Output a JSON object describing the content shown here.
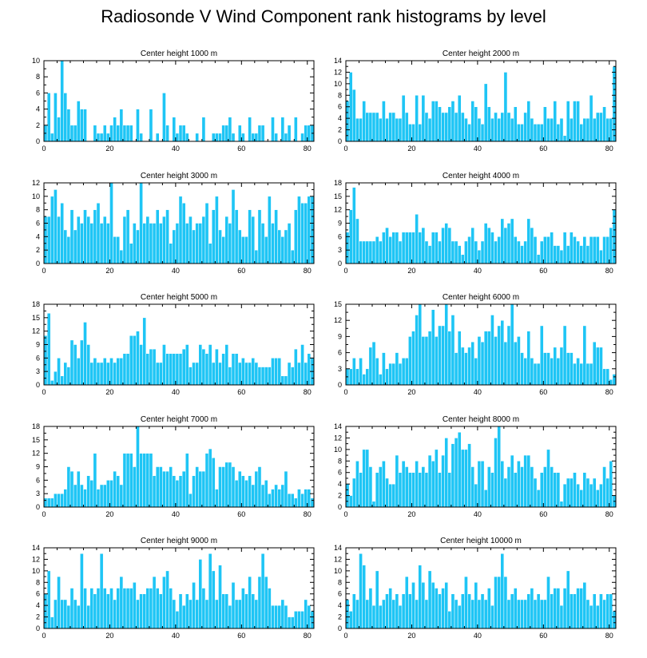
{
  "title": "Radiosonde V Wind Component rank histograms by level",
  "style": {
    "bar_color": "#1ec5f5",
    "bar_edge": "#ffffff",
    "axis_color": "#000000"
  },
  "chart_data": [
    {
      "type": "bar",
      "title": "Center height 1000 m",
      "xlim": [
        0,
        82
      ],
      "ylim": [
        0,
        10
      ],
      "xticks": [
        0,
        20,
        40,
        60,
        80
      ],
      "yticks": [
        0,
        2,
        4,
        6,
        8,
        10
      ],
      "values": [
        2,
        6,
        1,
        6,
        3,
        10,
        6,
        4,
        2,
        2,
        5,
        4,
        4,
        0,
        0,
        2,
        1,
        1,
        2,
        1,
        2,
        3,
        2,
        4,
        2,
        2,
        2,
        0,
        4,
        1,
        0,
        0,
        4,
        0,
        1,
        0,
        6,
        2,
        0,
        3,
        1,
        2,
        2,
        1,
        0,
        0,
        1,
        0,
        3,
        0,
        0,
        1,
        1,
        1,
        2,
        2,
        3,
        1,
        0,
        2,
        1,
        0,
        3,
        1,
        1,
        2,
        2,
        0,
        0,
        3,
        1,
        0,
        3,
        1,
        2,
        0,
        3,
        0,
        1,
        2,
        2,
        2
      ]
    },
    {
      "type": "bar",
      "title": "Center height 2000 m",
      "xlim": [
        0,
        82
      ],
      "ylim": [
        0,
        14
      ],
      "xticks": [
        0,
        20,
        40,
        60,
        80
      ],
      "yticks": [
        0,
        2,
        4,
        6,
        8,
        10,
        12,
        14
      ],
      "values": [
        7,
        12,
        9,
        4,
        4,
        7,
        5,
        5,
        5,
        5,
        4,
        7,
        4,
        5,
        5,
        4,
        4,
        8,
        5,
        3,
        3,
        8,
        3,
        8,
        5,
        4,
        7,
        7,
        6,
        5,
        5,
        6,
        7,
        5,
        8,
        5,
        4,
        3,
        7,
        6,
        4,
        3,
        10,
        6,
        4,
        5,
        4,
        5,
        12,
        5,
        4,
        6,
        3,
        3,
        5,
        7,
        4,
        3,
        3,
        3,
        6,
        4,
        4,
        7,
        3,
        4,
        1,
        7,
        4,
        7,
        7,
        3,
        4,
        4,
        8,
        4,
        5,
        5,
        6,
        4,
        4,
        13
      ]
    },
    {
      "type": "bar",
      "title": "Center height 3000 m",
      "xlim": [
        0,
        82
      ],
      "ylim": [
        0,
        12
      ],
      "xticks": [
        0,
        20,
        40,
        60,
        80
      ],
      "yticks": [
        0,
        2,
        4,
        6,
        8,
        10,
        12
      ],
      "values": [
        7,
        7,
        10,
        11,
        7,
        9,
        5,
        4,
        8,
        5,
        7,
        6,
        8,
        7,
        6,
        8,
        9,
        6,
        7,
        6,
        12,
        4,
        4,
        2,
        7,
        8,
        3,
        6,
        5,
        12,
        6,
        7,
        6,
        6,
        8,
        6,
        7,
        8,
        3,
        5,
        6,
        10,
        9,
        6,
        7,
        5,
        6,
        6,
        7,
        9,
        3,
        8,
        10,
        5,
        4,
        7,
        6,
        11,
        8,
        5,
        4,
        4,
        8,
        7,
        2,
        8,
        6,
        4,
        10,
        6,
        8,
        5,
        4,
        5,
        6,
        2,
        8,
        10,
        9,
        9,
        10,
        10
      ]
    },
    {
      "type": "bar",
      "title": "Center height 4000 m",
      "xlim": [
        0,
        82
      ],
      "ylim": [
        0,
        18
      ],
      "xticks": [
        0,
        20,
        40,
        60,
        80
      ],
      "yticks": [
        0,
        3,
        6,
        9,
        12,
        15,
        18
      ],
      "values": [
        7,
        12,
        17,
        10,
        5,
        5,
        5,
        5,
        5,
        6,
        5,
        7,
        8,
        6,
        7,
        7,
        5,
        7,
        7,
        7,
        7,
        11,
        7,
        8,
        5,
        4,
        7,
        7,
        5,
        8,
        9,
        8,
        5,
        5,
        4,
        2,
        5,
        6,
        8,
        5,
        3,
        5,
        9,
        8,
        7,
        5,
        6,
        10,
        8,
        9,
        10,
        6,
        5,
        4,
        5,
        10,
        8,
        6,
        2,
        5,
        6,
        6,
        7,
        4,
        4,
        3,
        7,
        4,
        7,
        6,
        5,
        4,
        6,
        4,
        6,
        6,
        6,
        3,
        6,
        6,
        8,
        12
      ]
    },
    {
      "type": "bar",
      "title": "Center height 5000 m",
      "xlim": [
        0,
        82
      ],
      "ylim": [
        0,
        18
      ],
      "xticks": [
        0,
        20,
        40,
        60,
        80
      ],
      "yticks": [
        0,
        3,
        6,
        9,
        12,
        15,
        18
      ],
      "values": [
        11,
        16,
        1,
        3,
        6,
        2,
        5,
        4,
        10,
        9,
        6,
        10,
        14,
        9,
        5,
        6,
        5,
        5,
        6,
        5,
        6,
        5,
        6,
        6,
        7,
        7,
        11,
        11,
        12,
        9,
        15,
        7,
        8,
        8,
        5,
        5,
        9,
        7,
        7,
        7,
        7,
        7,
        8,
        9,
        4,
        5,
        5,
        9,
        8,
        7,
        9,
        5,
        8,
        5,
        7,
        9,
        4,
        7,
        7,
        5,
        6,
        5,
        5,
        6,
        5,
        4,
        4,
        4,
        4,
        6,
        6,
        6,
        2,
        2,
        5,
        4,
        8,
        5,
        9,
        5,
        7,
        6
      ]
    },
    {
      "type": "bar",
      "title": "Center height 6000 m",
      "xlim": [
        0,
        82
      ],
      "ylim": [
        0,
        15
      ],
      "xticks": [
        0,
        20,
        40,
        60,
        80
      ],
      "yticks": [
        0,
        3,
        6,
        9,
        12,
        15
      ],
      "values": [
        3,
        3,
        5,
        3,
        5,
        2,
        3,
        7,
        8,
        5,
        2,
        6,
        3,
        4,
        4,
        6,
        4,
        5,
        5,
        9,
        10,
        13,
        15,
        9,
        9,
        10,
        14,
        9,
        11,
        11,
        15,
        10,
        13,
        6,
        10,
        7,
        6,
        7,
        8,
        5,
        9,
        8,
        10,
        10,
        13,
        9,
        11,
        12,
        8,
        11,
        15,
        8,
        9,
        6,
        5,
        10,
        5,
        4,
        4,
        11,
        6,
        6,
        5,
        7,
        5,
        7,
        11,
        6,
        6,
        4,
        5,
        4,
        11,
        4,
        4,
        8,
        7,
        7,
        3,
        3,
        1,
        2
      ]
    },
    {
      "type": "bar",
      "title": "Center height 7000 m",
      "xlim": [
        0,
        82
      ],
      "ylim": [
        0,
        18
      ],
      "xticks": [
        0,
        20,
        40,
        60,
        80
      ],
      "yticks": [
        0,
        3,
        6,
        9,
        12,
        15,
        18
      ],
      "values": [
        2,
        2,
        2,
        3,
        3,
        3,
        4,
        9,
        8,
        5,
        8,
        5,
        4,
        7,
        6,
        12,
        4,
        5,
        5,
        6,
        6,
        8,
        7,
        5,
        12,
        12,
        12,
        9,
        18,
        12,
        12,
        12,
        12,
        7,
        9,
        9,
        8,
        8,
        9,
        7,
        6,
        7,
        8,
        12,
        3,
        7,
        9,
        8,
        8,
        12,
        13,
        11,
        4,
        9,
        9,
        10,
        10,
        9,
        6,
        8,
        7,
        6,
        7,
        5,
        8,
        9,
        5,
        6,
        3,
        4,
        5,
        4,
        5,
        8,
        3,
        3,
        2,
        4,
        3,
        4,
        4,
        2
      ]
    },
    {
      "type": "bar",
      "title": "Center height 8000 m",
      "xlim": [
        0,
        82
      ],
      "ylim": [
        0,
        14
      ],
      "xticks": [
        0,
        20,
        40,
        60,
        80
      ],
      "yticks": [
        0,
        2,
        4,
        6,
        8,
        10,
        12,
        14
      ],
      "values": [
        4,
        2,
        5,
        8,
        6,
        10,
        10,
        7,
        1,
        6,
        7,
        8,
        5,
        4,
        4,
        9,
        6,
        8,
        7,
        6,
        6,
        8,
        6,
        7,
        6,
        9,
        8,
        10,
        6,
        9,
        12,
        6,
        11,
        12,
        13,
        10,
        10,
        11,
        7,
        4,
        8,
        8,
        3,
        7,
        6,
        12,
        14,
        8,
        5,
        7,
        9,
        6,
        8,
        7,
        9,
        9,
        7,
        5,
        3,
        6,
        7,
        10,
        7,
        6,
        6,
        1,
        4,
        5,
        5,
        6,
        4,
        3,
        6,
        5,
        4,
        5,
        3,
        4,
        7,
        5,
        8,
        2
      ]
    },
    {
      "type": "bar",
      "title": "Center height 9000 m",
      "xlim": [
        0,
        82
      ],
      "ylim": [
        0,
        14
      ],
      "xticks": [
        0,
        20,
        40,
        60,
        80
      ],
      "yticks": [
        0,
        2,
        4,
        6,
        8,
        10,
        12,
        14
      ],
      "values": [
        6,
        10,
        2,
        5,
        9,
        5,
        5,
        4,
        7,
        5,
        4,
        13,
        7,
        4,
        7,
        6,
        7,
        13,
        7,
        6,
        7,
        5,
        7,
        9,
        7,
        7,
        7,
        8,
        5,
        6,
        6,
        7,
        7,
        9,
        7,
        6,
        9,
        10,
        7,
        5,
        3,
        6,
        4,
        6,
        5,
        8,
        5,
        12,
        7,
        5,
        13,
        10,
        5,
        11,
        6,
        6,
        4,
        8,
        5,
        5,
        7,
        6,
        9,
        6,
        5,
        9,
        13,
        9,
        7,
        4,
        4,
        4,
        5,
        4,
        2,
        2,
        3,
        3,
        3,
        5,
        4,
        3
      ]
    },
    {
      "type": "bar",
      "title": "Center height 10000 m",
      "xlim": [
        0,
        82
      ],
      "ylim": [
        0,
        14
      ],
      "xticks": [
        0,
        20,
        40,
        60,
        80
      ],
      "yticks": [
        0,
        2,
        4,
        6,
        8,
        10,
        12,
        14
      ],
      "values": [
        5,
        3,
        6,
        5,
        13,
        11,
        5,
        7,
        4,
        10,
        4,
        5,
        6,
        7,
        5,
        6,
        4,
        6,
        9,
        6,
        8,
        5,
        11,
        8,
        5,
        10,
        8,
        7,
        6,
        7,
        8,
        3,
        6,
        5,
        4,
        6,
        9,
        6,
        5,
        8,
        5,
        6,
        5,
        7,
        4,
        9,
        9,
        13,
        9,
        5,
        6,
        7,
        5,
        5,
        5,
        6,
        7,
        5,
        6,
        5,
        5,
        9,
        6,
        7,
        7,
        4,
        7,
        10,
        6,
        6,
        7,
        7,
        8,
        5,
        4,
        6,
        4,
        6,
        5,
        6,
        6,
        3
      ]
    }
  ]
}
